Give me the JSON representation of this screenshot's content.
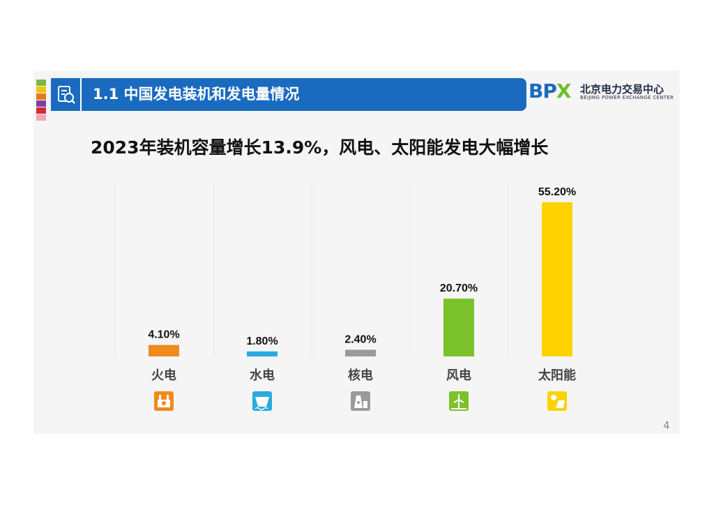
{
  "header": {
    "title": "1.1 中国发电装机和发电量情况",
    "stripe_colors": [
      "#7ab648",
      "#f5c400",
      "#e07a1f",
      "#7a3fa0",
      "#d42a3c",
      "#f2a7b5"
    ]
  },
  "logo": {
    "mark_b": "B",
    "mark_p": "P",
    "mark_x": "X",
    "cn": "北京电力交易中心",
    "en": "BEIJING POWER EXCHANGE CENTER"
  },
  "chart_data": {
    "type": "bar",
    "title": "2023年装机容量增长13.9%，风电、太阳能发电大幅增长",
    "categories": [
      "火电",
      "水电",
      "核电",
      "风电",
      "太阳能"
    ],
    "values": [
      4.1,
      1.8,
      2.4,
      20.7,
      55.2
    ],
    "value_labels": [
      "4.10%",
      "1.80%",
      "2.40%",
      "20.70%",
      "55.20%"
    ],
    "colors": [
      "#f08a1c",
      "#29abe2",
      "#9a9a9a",
      "#7cc22a",
      "#ffd200"
    ],
    "icons": [
      "thermal-plant-icon",
      "hydro-dam-icon",
      "nuclear-plant-icon",
      "wind-turbine-icon",
      "solar-panel-icon"
    ],
    "ylim": [
      0,
      56
    ],
    "xlabel": "",
    "ylabel": "",
    "grid": false
  },
  "page_number": "4"
}
